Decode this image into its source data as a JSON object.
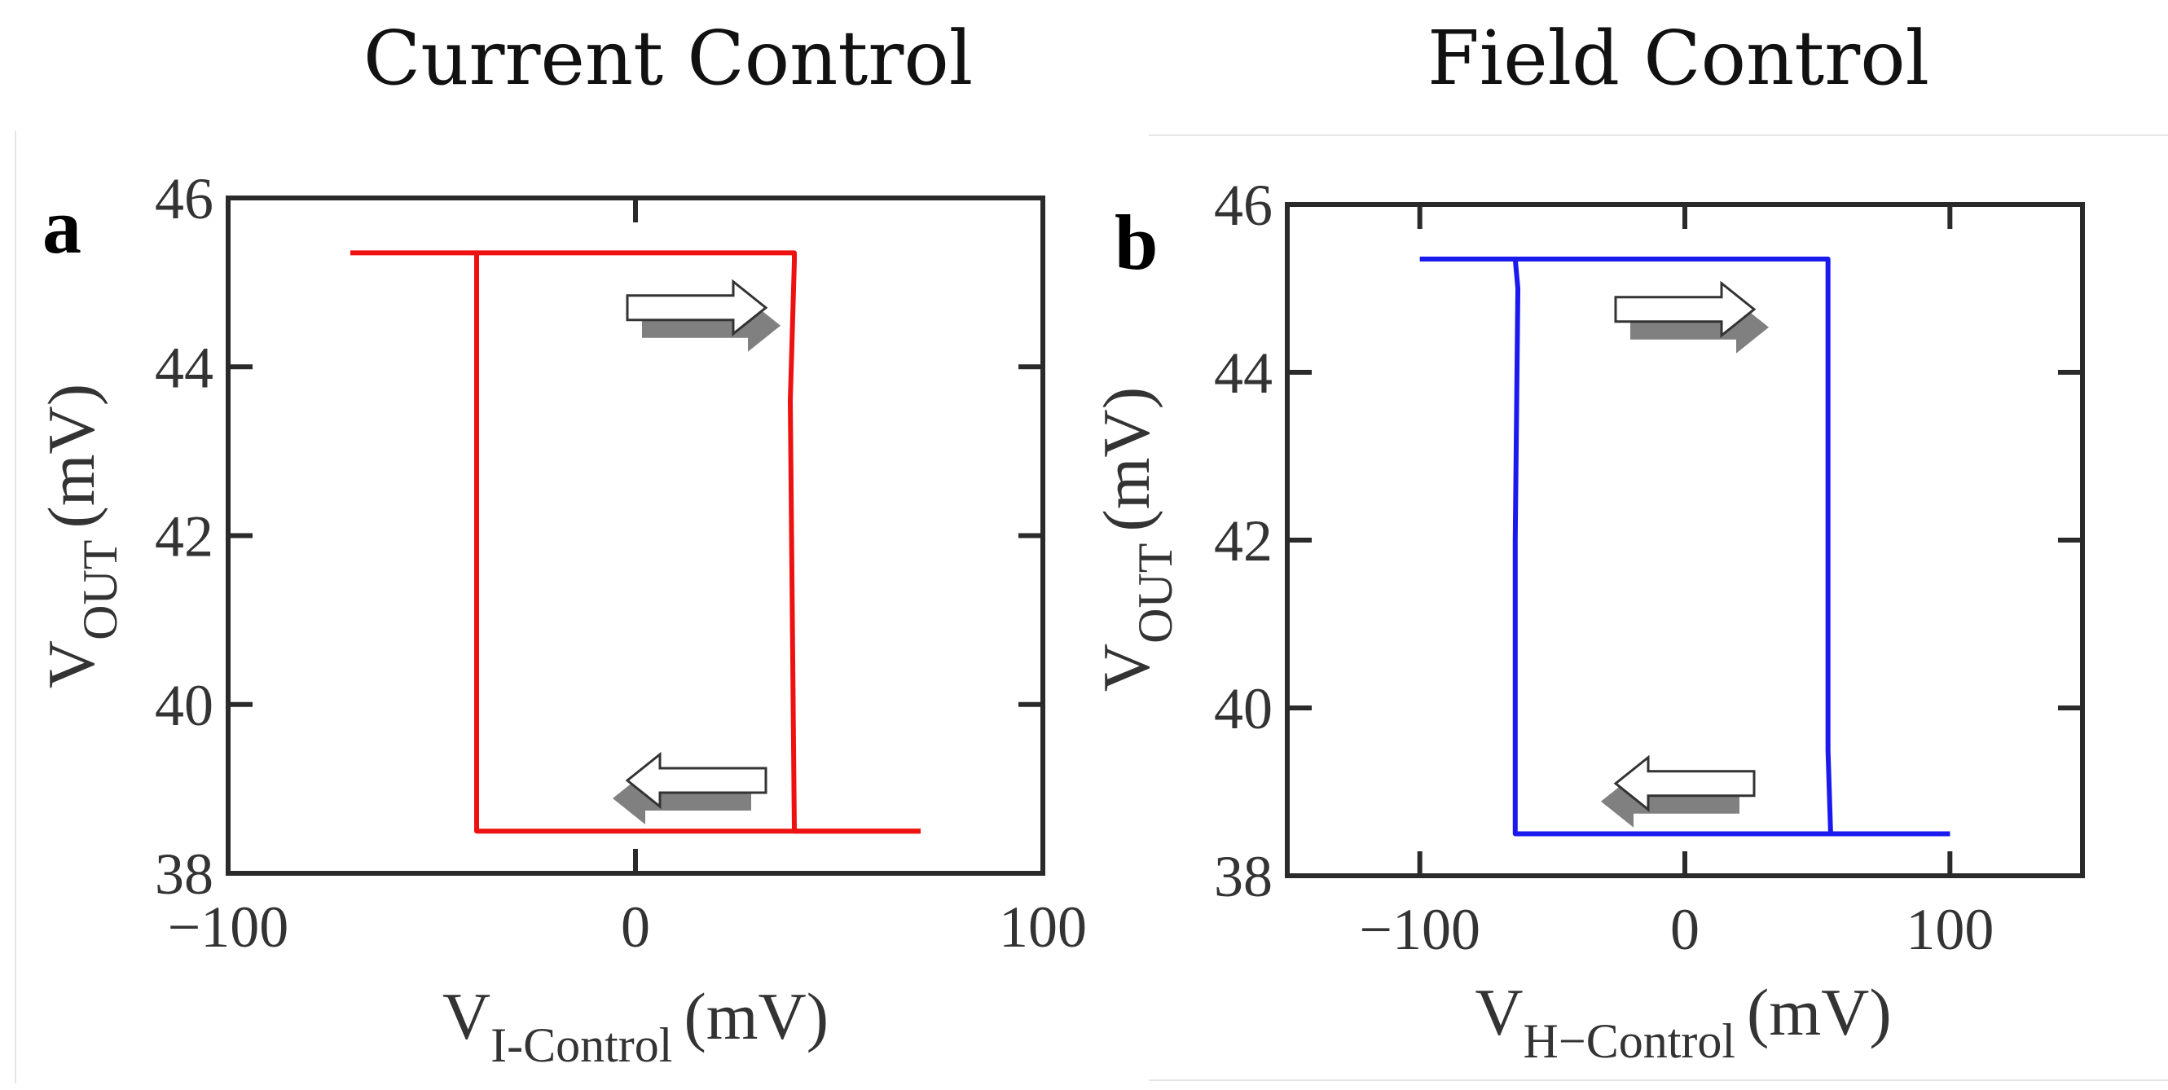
{
  "titles": {
    "left": "Current Control",
    "right": "Field Control"
  },
  "chart_data": [
    {
      "type": "line",
      "panel_label": "a",
      "title": "Current Control",
      "xlabel": "V",
      "xlabel_sub": "I-Control",
      "xlabel_unit": "(mV)",
      "ylabel": "V",
      "ylabel_sub": "OUT",
      "ylabel_unit": "(mV)",
      "xlim": [
        -100,
        100
      ],
      "ylim": [
        38,
        46
      ],
      "xticks": [
        -100,
        0,
        100
      ],
      "xtick_labels": [
        "−100",
        "0",
        "100"
      ],
      "yticks": [
        38,
        40,
        42,
        44,
        46
      ],
      "ytick_labels": [
        "38",
        "40",
        "42",
        "44",
        "46"
      ],
      "color": "#ee1111",
      "series": [
        {
          "x": [
            -70,
            -39,
            -39,
            -39,
            70
          ],
          "y": [
            45.35,
            45.35,
            42.0,
            38.5,
            38.5
          ]
        },
        {
          "x": [
            70,
            39,
            38,
            39,
            39,
            -39
          ],
          "y": [
            38.5,
            38.5,
            43.6,
            45.25,
            45.35,
            45.35
          ]
        }
      ],
      "arrows": [
        {
          "direction": "right",
          "x": 15,
          "y": 44.7
        },
        {
          "direction": "left",
          "x": 15,
          "y": 39.1
        }
      ]
    },
    {
      "type": "line",
      "panel_label": "b",
      "title": "Field Control",
      "xlabel": "V",
      "xlabel_sub": "H−Control",
      "xlabel_unit": "(mV)",
      "ylabel": "V",
      "ylabel_sub": "OUT",
      "ylabel_unit": "(mV)",
      "xlim": [
        -150,
        150
      ],
      "ylim": [
        38,
        46
      ],
      "xticks": [
        -100,
        0,
        100
      ],
      "xtick_labels": [
        "−100",
        "0",
        "100"
      ],
      "yticks": [
        38,
        40,
        42,
        44,
        46
      ],
      "ytick_labels": [
        "38",
        "40",
        "42",
        "44",
        "46"
      ],
      "color": "#1a1aee",
      "series": [
        {
          "x": [
            -100,
            -64,
            -63,
            -64,
            -64,
            100
          ],
          "y": [
            45.35,
            45.35,
            45.0,
            42.0,
            38.5,
            38.5
          ]
        },
        {
          "x": [
            100,
            55,
            54,
            54,
            54,
            -64
          ],
          "y": [
            38.5,
            38.5,
            39.5,
            44.0,
            45.35,
            45.35
          ]
        }
      ],
      "arrows": [
        {
          "direction": "right",
          "x": 0,
          "y": 44.75
        },
        {
          "direction": "left",
          "x": 0,
          "y": 39.1
        }
      ]
    }
  ]
}
